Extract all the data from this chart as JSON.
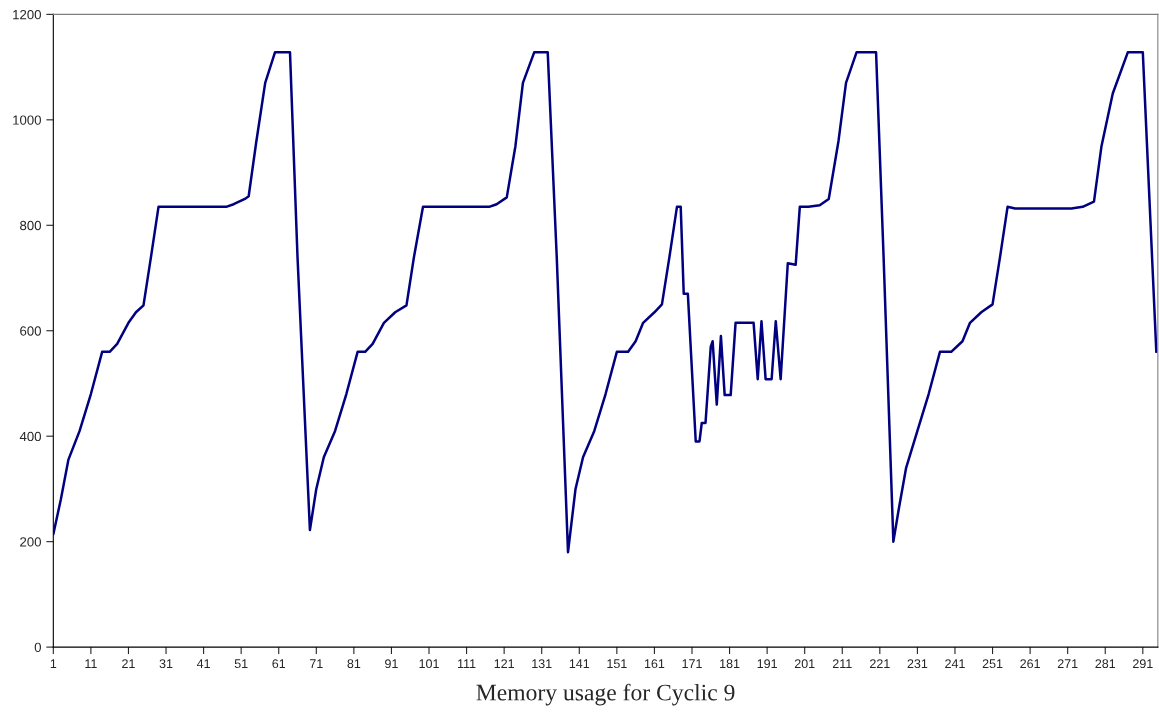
{
  "chart_data": {
    "type": "line",
    "title": "Memory usage for Cyclic 9",
    "series": [
      {
        "color": "#000080",
        "x": [
          1,
          3,
          5,
          8,
          11,
          14,
          16,
          18,
          21,
          23,
          25,
          27,
          29,
          40,
          47,
          49,
          52,
          53,
          55,
          57.4,
          60,
          64,
          66,
          69.3,
          71,
          73,
          76,
          79,
          82,
          84,
          86,
          89,
          92,
          95,
          97,
          99.4,
          110,
          117,
          119,
          121.7,
          124,
          126,
          129,
          132.6,
          135,
          138,
          140,
          142,
          145,
          148,
          151,
          154,
          156,
          158,
          161,
          163,
          165,
          167,
          168,
          168.8,
          169.9,
          172,
          173,
          173.6,
          174.6,
          176,
          176.5,
          177.6,
          178.7,
          179.7,
          181.3,
          182.6,
          187.4,
          188.5,
          189.5,
          190.6,
          192.2,
          193.3,
          194.6,
          196.5,
          198.6,
          199.7,
          202,
          205,
          207.4,
          210,
          212,
          214.8,
          220,
          222,
          224.6,
          226,
          228,
          231,
          234,
          237,
          240,
          243,
          245,
          248,
          251,
          253,
          255,
          257,
          272,
          275,
          278,
          280,
          283,
          287,
          291,
          294.6
        ],
        "values": [
          214,
          280,
          355,
          410,
          480,
          560,
          560,
          575,
          615,
          635,
          648,
          740,
          835,
          835,
          835,
          840,
          850,
          855,
          957,
          1070,
          1128,
          1128,
          740,
          222,
          300,
          360,
          410,
          480,
          560,
          560,
          575,
          615,
          635,
          648,
          740,
          835,
          835,
          835,
          840,
          853,
          950,
          1070,
          1128,
          1128,
          740,
          180,
          300,
          360,
          410,
          480,
          560,
          560,
          580,
          615,
          635,
          650,
          740,
          835,
          835,
          670,
          670,
          390,
          390,
          425,
          425,
          570,
          580,
          460,
          590,
          478,
          478,
          615,
          615,
          508,
          618,
          508,
          508,
          618,
          508,
          728,
          725,
          835,
          835,
          838,
          850,
          960,
          1070,
          1128,
          1128,
          740,
          200,
          260,
          340,
          410,
          480,
          560,
          560,
          580,
          615,
          635,
          650,
          740,
          835,
          832,
          832,
          835,
          845,
          950,
          1050,
          1128,
          1128,
          560
        ]
      }
    ],
    "xlim": [
      1,
      295
    ],
    "ylim": [
      0,
      1200
    ],
    "xticks": [
      1,
      11,
      21,
      31,
      41,
      51,
      61,
      71,
      81,
      91,
      101,
      111,
      121,
      131,
      141,
      151,
      161,
      171,
      181,
      191,
      201,
      211,
      221,
      231,
      241,
      251,
      261,
      271,
      281,
      291
    ],
    "yticks": [
      0,
      200,
      400,
      600,
      800,
      1000,
      1200
    ],
    "grid": false,
    "legend": false,
    "marker": "none",
    "line_style": "solid"
  }
}
